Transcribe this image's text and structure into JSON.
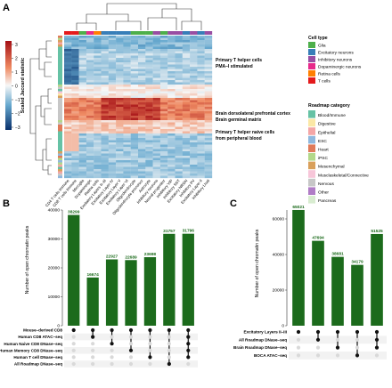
{
  "panels": {
    "a": "A",
    "b": "B",
    "c": "C"
  },
  "panel_a": {
    "colorbar_label": "Scaled Jaccard statistic",
    "colorbar_ticks": [
      "3",
      "2",
      "1",
      "0",
      "−1",
      "−2",
      "−3"
    ],
    "row_annotations": [
      {
        "lines": [
          "Primary T helper cells",
          "PMA–I stimulated"
        ]
      },
      {
        "lines": [
          "Brain dorsolateral prefrontal cortex",
          "Brain germinal matrix"
        ]
      },
      {
        "lines": [
          "Primary T helper naive cells",
          "from peripheral blood"
        ]
      }
    ],
    "column_labels": [
      "CD4 T cells Immune",
      "CD8 T cells Immune",
      "Microglia",
      "Dopaminergic",
      "Retina cells",
      "Excitatory Layers II–III",
      "Excitatory Layer IV",
      "Excitatory Layer V",
      "Excitatory Layer VI",
      "Oligodendrocyte",
      "Oligodendrocyte precursor",
      "Astrocyte",
      "Inhibitory neurons",
      "Neural progenitor",
      "Inhibitory VIP",
      "Inhibitory SST",
      "Excitatory NRGN",
      "Inhibitory PV",
      "Excitatory Layer II",
      "Inhibitory Lhx6"
    ],
    "cell_type_legend": {
      "title": "Cell type",
      "items": [
        {
          "label": "Glia",
          "color": "#4daf4a"
        },
        {
          "label": "Excitatory neurons",
          "color": "#377eb8"
        },
        {
          "label": "Inhibitory neurons",
          "color": "#984ea3"
        },
        {
          "label": "Dopaminergic neurons",
          "color": "#e7298a"
        },
        {
          "label": "Retina cells",
          "color": "#ff7f00"
        },
        {
          "label": "T cells",
          "color": "#e41a1c"
        }
      ]
    },
    "roadmap_legend": {
      "title": "Roadmap category",
      "items": [
        {
          "label": "Blood/Immune",
          "color": "#66c2a5"
        },
        {
          "label": "Digestive",
          "color": "#fbe8a6"
        },
        {
          "label": "Epithelial",
          "color": "#f4a6a6"
        },
        {
          "label": "ESC",
          "color": "#8fb8de"
        },
        {
          "label": "Heart",
          "color": "#e07b5a"
        },
        {
          "label": "iPSC",
          "color": "#b3d88a"
        },
        {
          "label": "Mesenchymal",
          "color": "#d9a05b"
        },
        {
          "label": "Musclaskeletal/Connective",
          "color": "#f7c6d9"
        },
        {
          "label": "Nervous",
          "color": "#c7c7c7"
        },
        {
          "label": "Other",
          "color": "#b07cc6"
        },
        {
          "label": "Pancreas",
          "color": "#d8ecd0"
        }
      ]
    }
  },
  "chart_data": [
    {
      "type": "bar",
      "panel": "B",
      "ylabel": "Number of open chromatin peaks",
      "ylim": [
        0,
        40000
      ],
      "yticks": [
        "0",
        "10000",
        "20000",
        "30000",
        "40000"
      ],
      "values": [
        38299,
        16674,
        22927,
        22689,
        23698,
        31757,
        31796
      ],
      "value_labels": [
        "38299",
        "16674",
        "22927",
        "22689",
        "23698",
        "31757",
        "31796"
      ],
      "sets": [
        "Mouse–derived CD8",
        "Human CD8 ATAC–seq",
        "Human Naive CD8 DNase–seq",
        "Human Memory CD8 DNase–seq",
        "Human T cell DNase–seq",
        "All Roadmap DNase–seq"
      ],
      "intersections": [
        [
          0
        ],
        [
          0,
          1
        ],
        [
          0,
          2
        ],
        [
          0,
          3
        ],
        [
          0,
          4
        ],
        [
          0,
          5
        ],
        [
          0,
          1,
          2,
          3,
          4
        ]
      ],
      "bar_color": "#1c6b1c"
    },
    {
      "type": "bar",
      "panel": "C",
      "ylabel": "Number of open chromatin peaks",
      "ylim": [
        0,
        65000
      ],
      "yticks": [
        "0",
        "20000",
        "40000",
        "60000"
      ],
      "values": [
        65021,
        47694,
        38681,
        34179,
        51525
      ],
      "value_labels": [
        "65021",
        "47694",
        "38681",
        "34179",
        "51525"
      ],
      "sets": [
        "Excitatory Layers II–III",
        "All Roadmap DNase–seq",
        "Brain Roadmap DNase–seq",
        "BOCA ATAC–seq"
      ],
      "intersections": [
        [
          0
        ],
        [
          0,
          1
        ],
        [
          0,
          2
        ],
        [
          0,
          3
        ],
        [
          0,
          1,
          2
        ]
      ],
      "bar_color": "#1c6b1c"
    }
  ]
}
